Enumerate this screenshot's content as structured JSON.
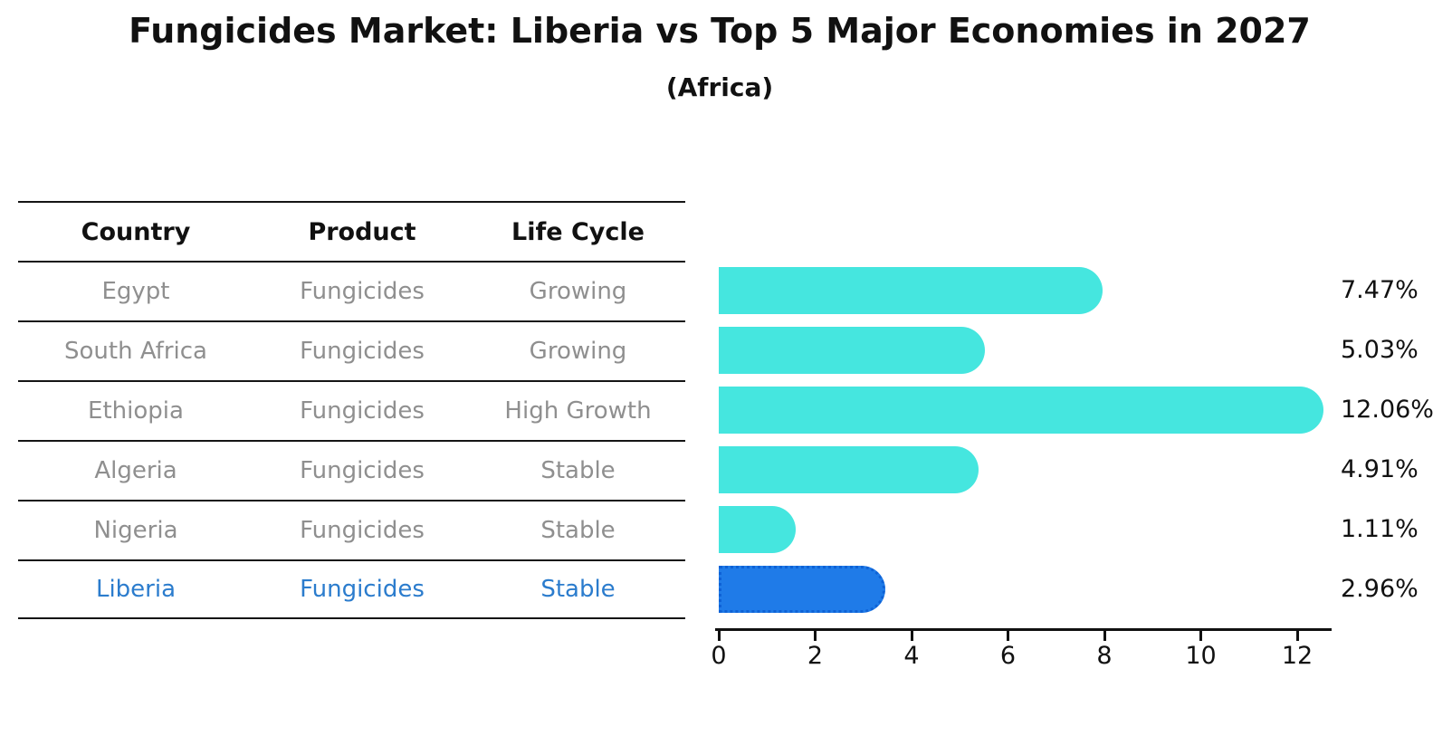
{
  "title": "Fungicides Market: Liberia vs Top 5 Major Economies in 2027",
  "subtitle": "(Africa)",
  "table": {
    "headers": [
      "Country",
      "Product",
      "Life Cycle"
    ],
    "rows": [
      {
        "country": "Egypt",
        "product": "Fungicides",
        "life_cycle": "Growing",
        "highlight": false
      },
      {
        "country": "South Africa",
        "product": "Fungicides",
        "life_cycle": "Growing",
        "highlight": false
      },
      {
        "country": "Ethiopia",
        "product": "Fungicides",
        "life_cycle": "High Growth",
        "highlight": false
      },
      {
        "country": "Algeria",
        "product": "Fungicides",
        "life_cycle": "Stable",
        "highlight": false
      },
      {
        "country": "Nigeria",
        "product": "Fungicides",
        "life_cycle": "Stable",
        "highlight": true
      }
    ],
    "highlight_row": {
      "country": "Liberia",
      "product": "Fungicides",
      "life_cycle": "Stable"
    }
  },
  "chart_data": {
    "type": "bar",
    "orientation": "horizontal",
    "title": "Fungicides Market: Liberia vs Top 5 Major Economies in 2027",
    "subtitle": "(Africa)",
    "categories": [
      "Egypt",
      "South Africa",
      "Ethiopia",
      "Algeria",
      "Nigeria",
      "Liberia"
    ],
    "values": [
      7.47,
      5.03,
      12.06,
      4.91,
      1.11,
      2.96
    ],
    "labels": [
      "7.47%",
      "5.03%",
      "12.06%",
      "4.91%",
      "1.11%",
      "2.96%"
    ],
    "x_ticks": [
      0,
      2,
      4,
      6,
      8,
      10,
      12
    ],
    "xlim": [
      0,
      12.75
    ],
    "xlabel": "",
    "ylabel": "",
    "grid": false,
    "legend": "none",
    "highlight_index": 5,
    "highlight_category": "Liberia"
  },
  "colors": {
    "bar": "#45e6df",
    "highlight_bar": "#1f7be8",
    "highlight_bar_border": "#0e62d6",
    "highlight_text": "#2b7ccd",
    "table_text": "#8f8f8f",
    "text": "#111111"
  }
}
